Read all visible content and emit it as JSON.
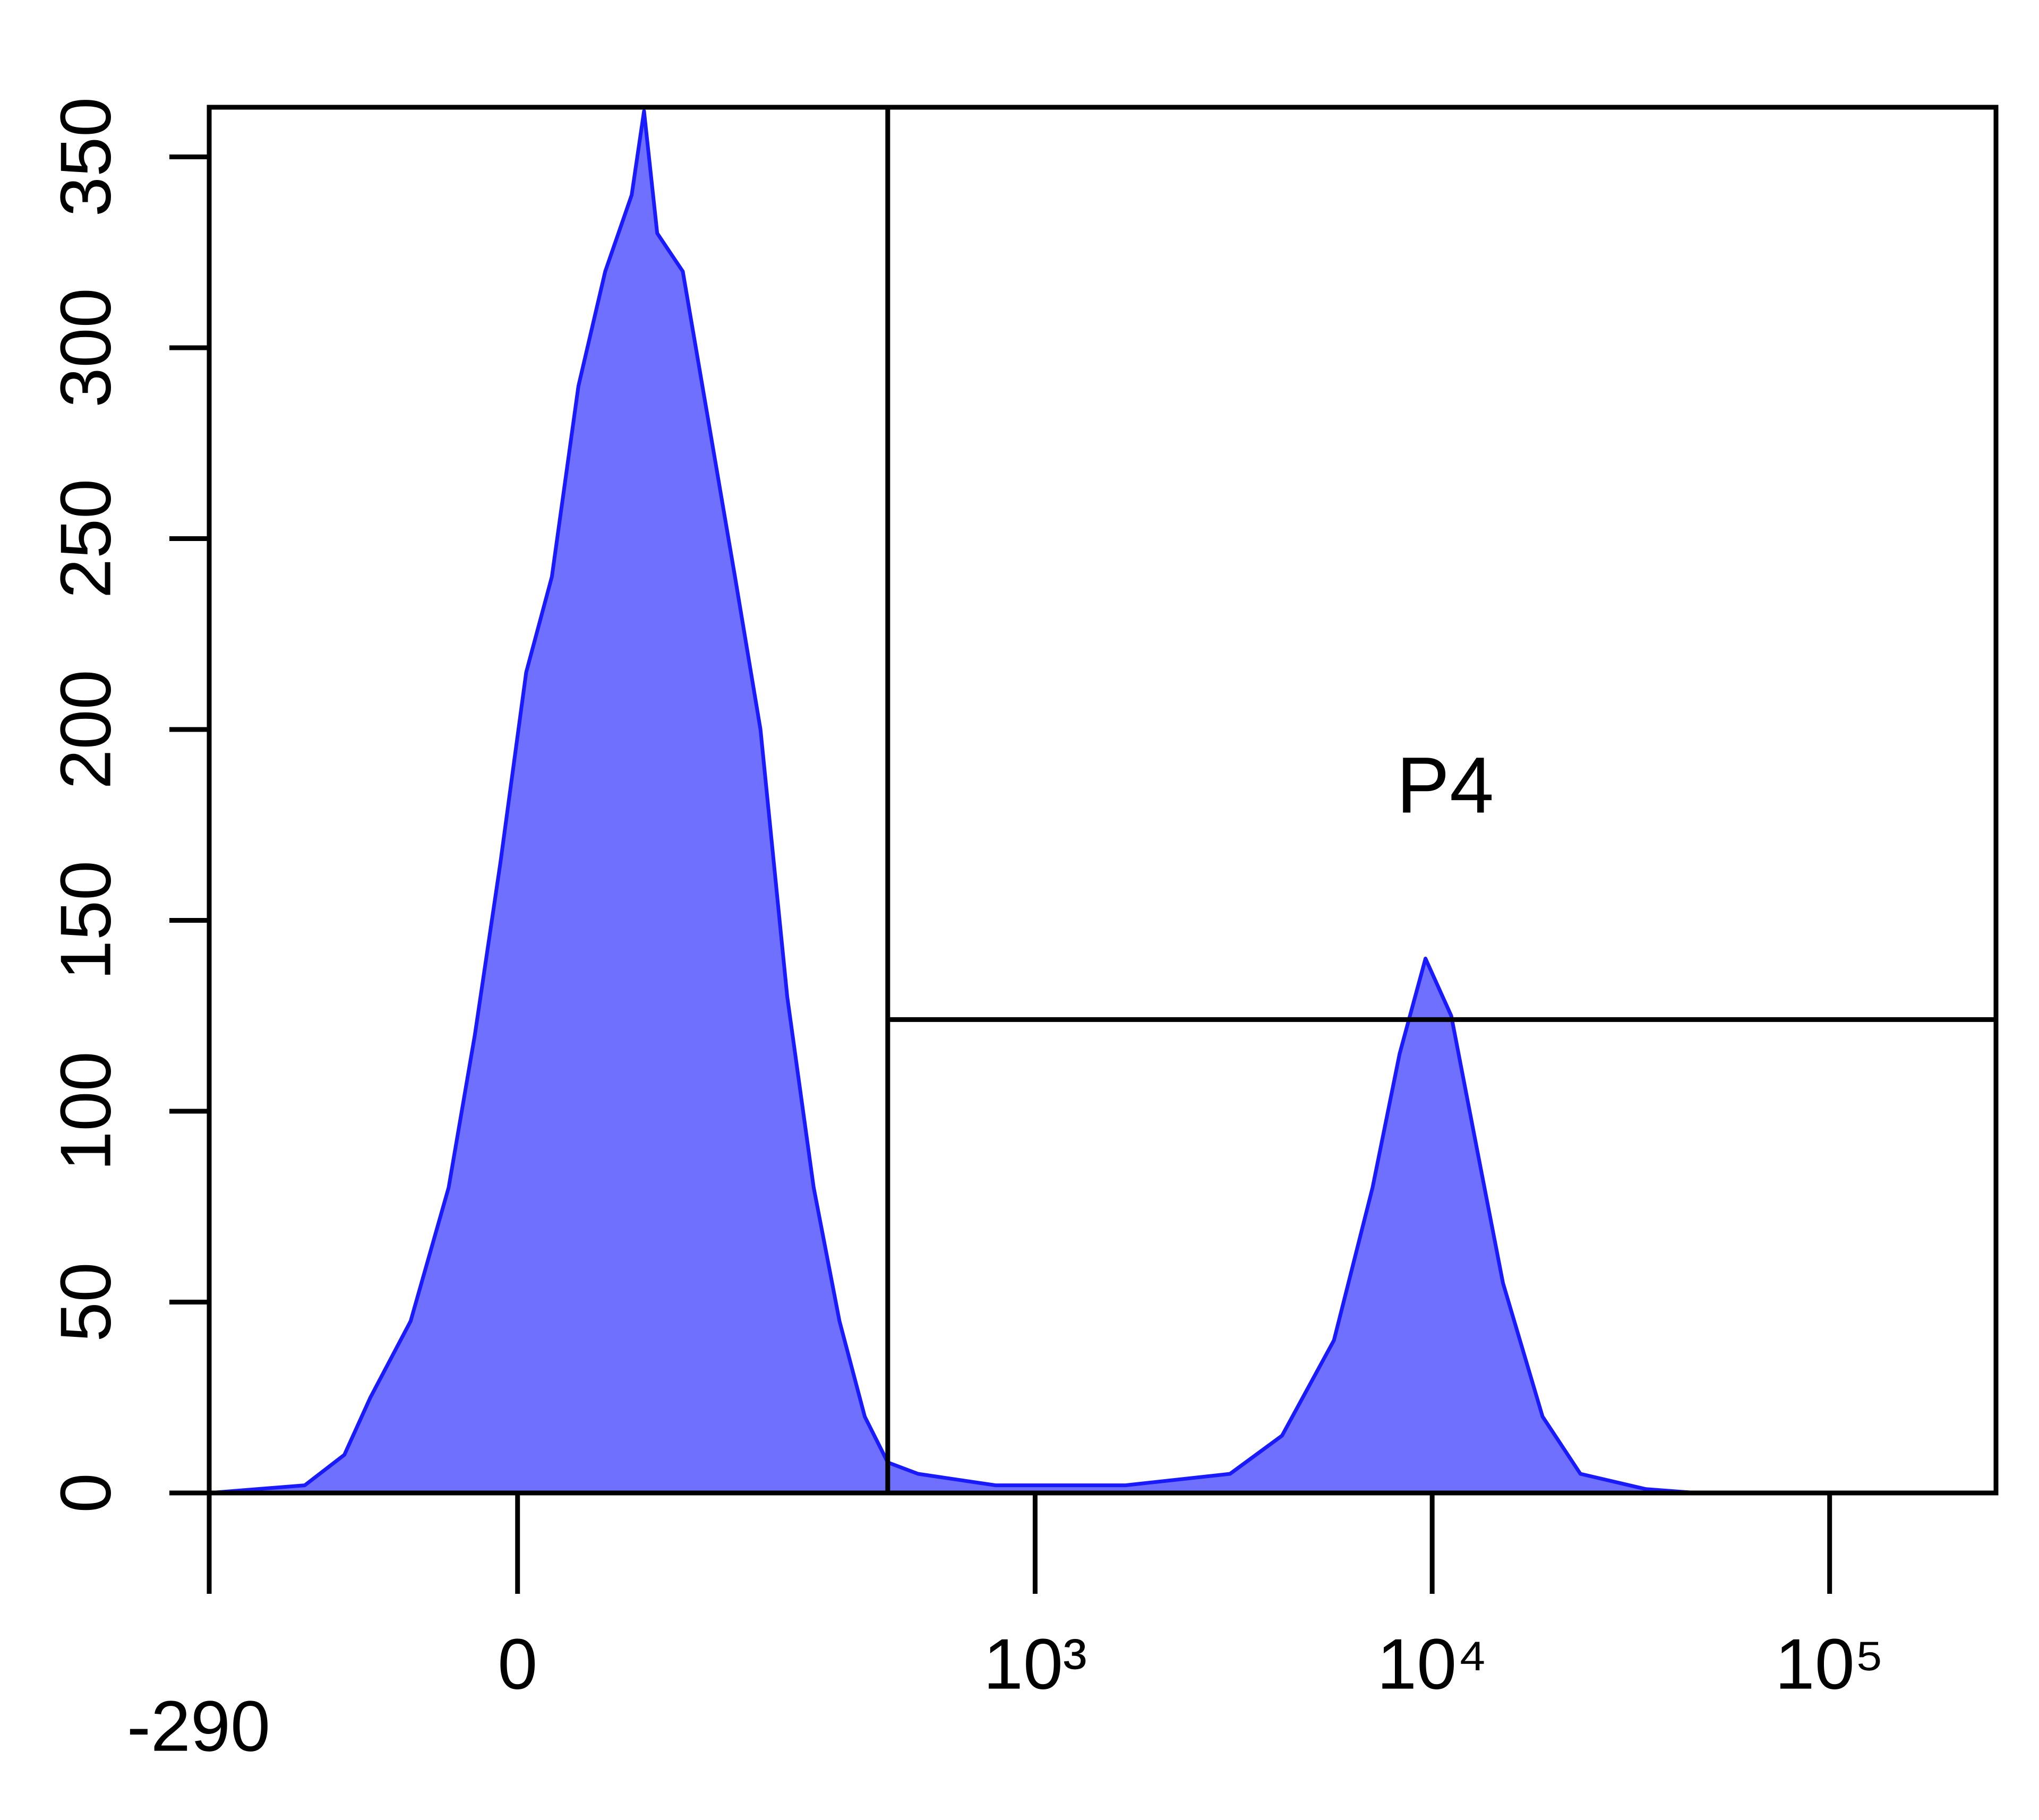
{
  "chart_data": {
    "type": "histogram",
    "xscale": "biexponential",
    "xlim": [
      -290,
      262144
    ],
    "xticks": [
      -290,
      0,
      {
        "value": 1000,
        "label": "10³"
      },
      {
        "value": 10000,
        "label": "10⁴"
      },
      {
        "value": 100000,
        "label": "10⁵"
      }
    ],
    "ylim": [
      0,
      363
    ],
    "yticks": [
      0,
      50,
      100,
      150,
      200,
      250,
      300,
      350
    ],
    "color": "#7070ff",
    "x": [
      -290,
      -157,
      -118,
      -96,
      -66,
      -41,
      -25,
      -10,
      5,
      20,
      36,
      53,
      71,
      80,
      90,
      111,
      135,
      162,
      192,
      228,
      269,
      315,
      367,
      421,
      504,
      794,
      1690,
      3100,
      4190,
      5660,
      7080,
      8280,
      9620,
      11170,
      12970,
      15070,
      18960,
      23600,
      34500,
      46500,
      262144
    ],
    "values": [
      0,
      2,
      10,
      25,
      45,
      80,
      120,
      165,
      215,
      240,
      290,
      320,
      340,
      362,
      330,
      320,
      280,
      240,
      200,
      130,
      80,
      45,
      20,
      8,
      5,
      2,
      2,
      5,
      15,
      40,
      80,
      115,
      140,
      125,
      90,
      55,
      20,
      5,
      1,
      0,
      0
    ],
    "gate": {
      "label": "P4",
      "x": [
        421,
        262144
      ],
      "y": [
        124,
        363
      ]
    }
  }
}
